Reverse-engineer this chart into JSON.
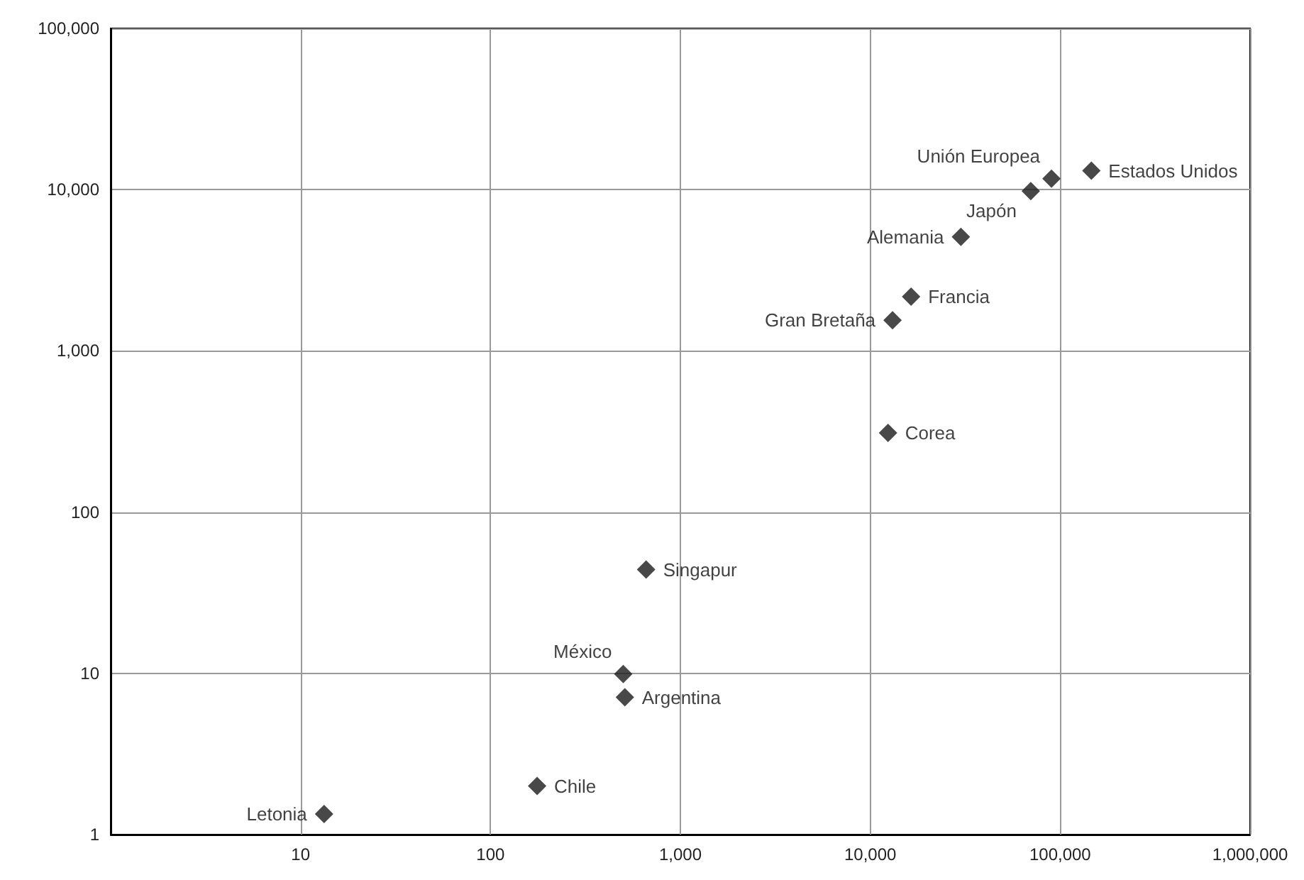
{
  "chart_data": {
    "type": "scatter",
    "log": "xy",
    "grid": true,
    "marker": "diamond",
    "xlim": [
      1,
      1000000
    ],
    "ylim": [
      1,
      100000
    ],
    "xticks": [
      10,
      100,
      {
        "value": 1000,
        "label": "1,000"
      },
      {
        "value": 10000,
        "label": "10,000"
      },
      {
        "value": 100000,
        "label": "100,000"
      },
      {
        "value": 1000000,
        "label": "1,000,000"
      }
    ],
    "yticks": [
      1,
      10,
      100,
      {
        "value": 1000,
        "label": "1,000"
      },
      {
        "value": 10000,
        "label": "10,000"
      },
      {
        "value": 100000,
        "label": "100,000"
      }
    ],
    "series": [
      {
        "color": "#1a1a1a",
        "x": [
          146000,
          90000,
          70000,
          30000,
          16400,
          13100
        ],
        "values": [
          13100,
          11700,
          9800,
          5100,
          2170,
          1550
        ]
      },
      {
        "color": "#1a1a1a",
        "x": [
          12400,
          660,
          500,
          510,
          176,
          13.3
        ],
        "values": [
          310,
          44,
          9.9,
          7.1,
          2.0,
          1.34
        ]
      }
    ],
    "annotations": [
      {
        "text": "Estados Unidos",
        "x": 146000,
        "y": 13100
      },
      {
        "text": "Unión Europea",
        "x": 90000,
        "y": 11700
      },
      {
        "text": "Japón",
        "x": 70000,
        "y": 9800
      },
      {
        "text": "Alemania",
        "x": 30000,
        "y": 5100
      },
      {
        "text": "Francia",
        "x": 16400,
        "y": 2170
      },
      {
        "text": "Gran Bretaña",
        "x": 13100,
        "y": 1550
      },
      {
        "text": "Corea",
        "x": 12400,
        "y": 310
      },
      {
        "text": "Singapur",
        "x": 660,
        "y": 44
      },
      {
        "text": "México",
        "x": 500,
        "y": 9.9
      },
      {
        "text": "Argentina",
        "x": 510,
        "y": 7.1
      },
      {
        "text": "Chile",
        "x": 176,
        "y": 2.0
      },
      {
        "text": "Letonia",
        "x": 13.3,
        "y": 1.34
      }
    ]
  }
}
